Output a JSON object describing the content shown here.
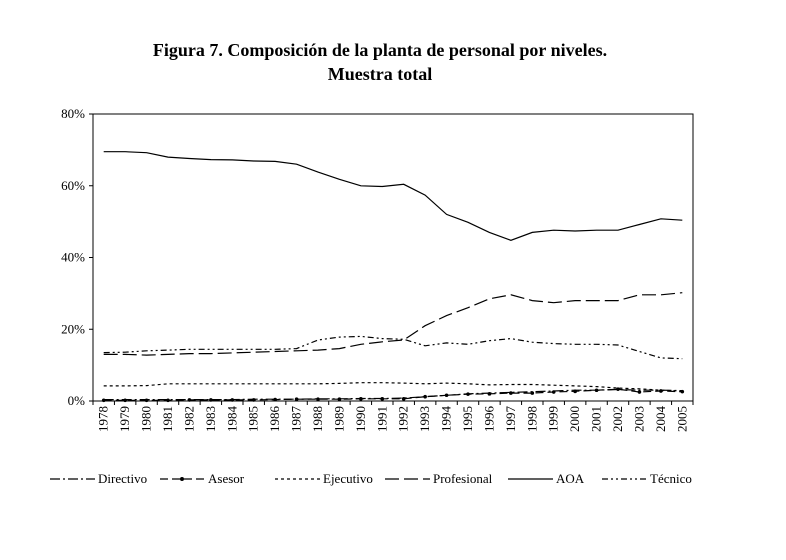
{
  "title_line1": "Figura 7. Composición de la planta de personal por niveles.",
  "title_line2": "Muestra total",
  "chart_data": {
    "type": "line",
    "title": "Figura 7. Composición de la planta de personal por niveles. Muestra total",
    "xlabel": "",
    "ylabel": "",
    "ylim": [
      0,
      80
    ],
    "y_ticks": [
      "0%",
      "20%",
      "40%",
      "60%",
      "80%"
    ],
    "y_tick_values": [
      0,
      20,
      40,
      60,
      80
    ],
    "grid": false,
    "legend_position": "bottom",
    "x": [
      "1978",
      "1979",
      "1980",
      "1981",
      "1982",
      "1983",
      "1984",
      "1985",
      "1986",
      "1987",
      "1988",
      "1989",
      "1990",
      "1991",
      "1992",
      "1993",
      "1994",
      "1995",
      "1996",
      "1997",
      "1998",
      "1999",
      "2000",
      "2001",
      "2002",
      "2003",
      "2004",
      "2005"
    ],
    "series": [
      {
        "name": "Directivo",
        "dash": "10 3 2 3",
        "marker": false,
        "values": [
          0.4,
          0.4,
          0.4,
          0.4,
          0.4,
          0.4,
          0.4,
          0.5,
          0.5,
          0.5,
          0.6,
          0.6,
          0.7,
          0.7,
          0.8,
          1.2,
          1.6,
          2.0,
          2.2,
          2.4,
          2.6,
          2.8,
          3.0,
          3.0,
          3.2,
          3.0,
          3.0,
          2.9
        ]
      },
      {
        "name": "Asesor",
        "dash": "8 4",
        "marker": true,
        "values": [
          0.2,
          0.2,
          0.2,
          0.2,
          0.3,
          0.3,
          0.3,
          0.3,
          0.4,
          0.5,
          0.5,
          0.5,
          0.6,
          0.6,
          0.6,
          1.2,
          1.6,
          1.9,
          2.0,
          2.2,
          2.2,
          2.5,
          2.7,
          3.0,
          3.3,
          2.5,
          2.8,
          2.6
        ]
      },
      {
        "name": "Ejecutivo",
        "dash": "3 3",
        "marker": false,
        "values": [
          4.2,
          4.2,
          4.3,
          4.8,
          4.8,
          4.8,
          4.8,
          4.8,
          4.8,
          4.8,
          4.8,
          4.9,
          5.1,
          5.1,
          5.0,
          4.8,
          5.0,
          4.8,
          4.5,
          4.6,
          4.6,
          4.4,
          4.2,
          4.0,
          3.6,
          3.4,
          3.0,
          2.8
        ]
      },
      {
        "name": "Profesional",
        "dash": "14 5",
        "marker": false,
        "values": [
          13.0,
          13.0,
          12.8,
          13.0,
          13.2,
          13.2,
          13.4,
          13.6,
          13.8,
          14.0,
          14.2,
          14.6,
          15.8,
          16.5,
          17.0,
          21.0,
          23.8,
          26.0,
          28.5,
          29.6,
          28.0,
          27.4,
          28.0,
          28.0,
          28.0,
          29.6,
          29.6,
          30.2
        ]
      },
      {
        "name": "AOA",
        "dash": "",
        "marker": false,
        "values": [
          69.5,
          69.5,
          69.2,
          68.0,
          67.6,
          67.3,
          67.2,
          66.9,
          66.8,
          66.0,
          63.8,
          61.8,
          60.0,
          59.8,
          60.4,
          57.4,
          52.0,
          49.8,
          47.0,
          44.8,
          47.0,
          47.6,
          47.4,
          47.6,
          47.6,
          49.2,
          50.8,
          50.4
        ]
      },
      {
        "name": "Técnico",
        "dash": "6 3 2 3 2 3",
        "marker": false,
        "values": [
          13.5,
          13.6,
          14.0,
          14.2,
          14.4,
          14.4,
          14.4,
          14.4,
          14.4,
          14.6,
          17.0,
          17.8,
          18.0,
          17.4,
          17.2,
          15.4,
          16.2,
          15.8,
          16.8,
          17.4,
          16.4,
          16.0,
          15.8,
          15.8,
          15.6,
          13.8,
          12.0,
          11.8
        ]
      }
    ]
  }
}
